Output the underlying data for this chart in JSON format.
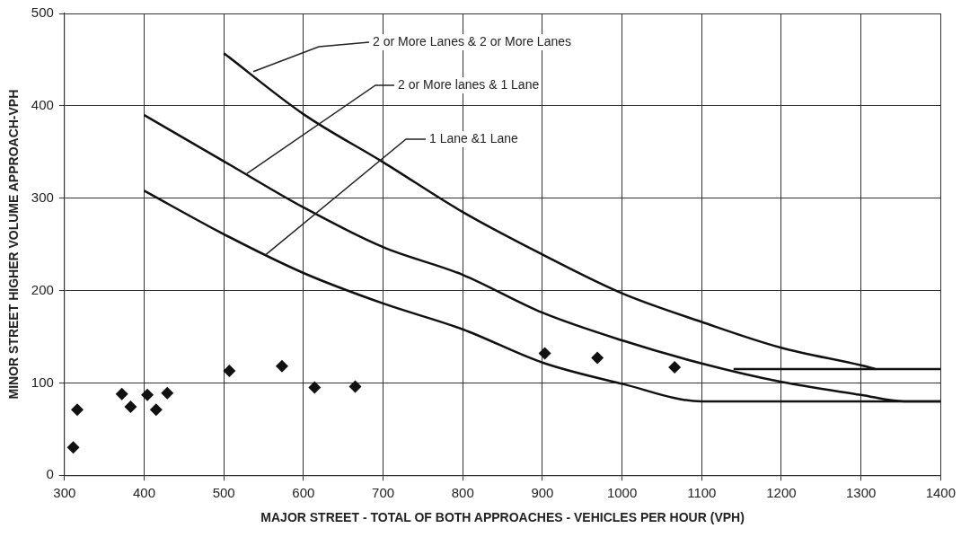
{
  "chart_data": {
    "type": "scatter",
    "xlabel": "MAJOR STREET - TOTAL OF BOTH APPROACHES - VEHICLES PER HOUR (VPH)",
    "ylabel": "MINOR STREET HIGHER VOLUME APPROACH-VPH",
    "xlim": [
      300,
      1400
    ],
    "xticks": [
      300,
      400,
      500,
      600,
      700,
      800,
      900,
      1000,
      1100,
      1200,
      1300,
      1400
    ],
    "ylim": [
      0,
      500
    ],
    "yticks": [
      0,
      100,
      200,
      300,
      400,
      500
    ],
    "grid": true,
    "legend": false,
    "series": [
      {
        "type": "scatter",
        "color": "#111111",
        "marker": "diamond",
        "x": [
          311,
          316,
          372,
          383,
          404,
          415,
          429,
          507,
          573,
          614,
          665,
          903,
          969,
          1066
        ],
        "values": [
          30,
          71,
          88,
          74,
          87,
          71,
          89,
          113,
          118,
          95,
          96,
          132,
          127,
          117
        ]
      },
      {
        "type": "line",
        "color": "#111111",
        "marker": "none",
        "x": [
          500,
          600,
          700,
          800,
          900,
          1000,
          1100,
          1200,
          1300,
          1318
        ],
        "values": [
          457,
          391,
          339,
          285,
          239,
          197,
          166,
          138,
          119,
          115
        ]
      },
      {
        "type": "line",
        "color": "#111111",
        "marker": "none",
        "x": [
          1140,
          1400
        ],
        "values": [
          115,
          115
        ]
      },
      {
        "type": "line",
        "color": "#111111",
        "marker": "none",
        "x": [
          400,
          500,
          600,
          700,
          800,
          900,
          1000,
          1100,
          1200,
          1300,
          1354,
          1400
        ],
        "values": [
          390,
          340,
          290,
          247,
          217,
          176,
          146,
          121,
          101,
          87,
          80,
          80
        ]
      },
      {
        "type": "line",
        "color": "#111111",
        "marker": "none",
        "x": [
          400,
          500,
          600,
          700,
          800,
          900,
          1000,
          1100,
          1400
        ],
        "values": [
          308,
          261,
          219,
          186,
          158,
          122,
          99,
          80,
          80
        ]
      }
    ],
    "annotations": [
      {
        "text": "2 or More Lanes & 2 or More Lanes",
        "x": 537,
        "y": 437
      },
      {
        "text": "2 or More lanes & 1 Lane",
        "x": 528,
        "y": 326
      },
      {
        "text": "1 Lane &1 Lane",
        "x": 553,
        "y": 239
      }
    ]
  }
}
